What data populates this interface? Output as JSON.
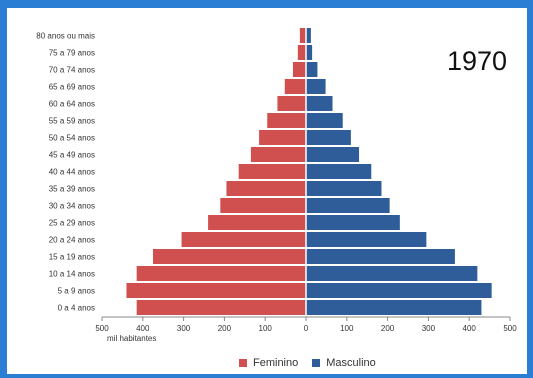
{
  "chart_data": {
    "type": "bar",
    "orientation": "horizontal",
    "subtype": "population-pyramid",
    "title": "1970",
    "xlabel": "mil habitantes",
    "xlim": [
      -500,
      500
    ],
    "x_ticks": [
      -500,
      -400,
      -300,
      -200,
      -100,
      0,
      100,
      200,
      300,
      400,
      500
    ],
    "x_tick_labels": [
      "500",
      "400",
      "300",
      "200",
      "100",
      "0",
      "100",
      "200",
      "300",
      "400",
      "500"
    ],
    "categories": [
      "0 a 4 anos",
      "5 a 9 anos",
      "10 a 14 anos",
      "15 a 19 anos",
      "20 a 24 anos",
      "25 a 29 anos",
      "30 a 34 anos",
      "35 a 39 anos",
      "40 a 44 anos",
      "45 a 49 anos",
      "50 a 54 anos",
      "55 a 59 anos",
      "60 a 64 anos",
      "65 a 69 anos",
      "70 a 74 anos",
      "75 a 79 anos",
      "80 anos ou mais"
    ],
    "series": [
      {
        "name": "Feminino",
        "color": "#d05050",
        "values": [
          415,
          440,
          415,
          375,
          305,
          240,
          210,
          195,
          165,
          135,
          115,
          95,
          70,
          52,
          32,
          20,
          15
        ]
      },
      {
        "name": "Masculino",
        "color": "#2e5d9a",
        "values": [
          430,
          455,
          420,
          365,
          295,
          230,
          205,
          185,
          160,
          130,
          110,
          90,
          65,
          48,
          28,
          15,
          12
        ]
      }
    ],
    "grid": false,
    "legend_position": "bottom"
  }
}
